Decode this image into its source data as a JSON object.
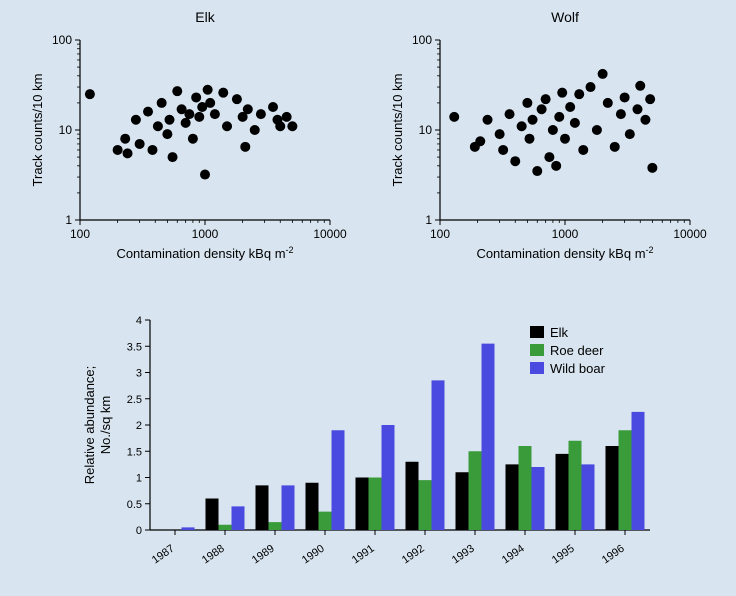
{
  "background_color": "#d8e5f0",
  "elk_scatter": {
    "type": "scatter",
    "title": "Elk",
    "title_fontsize": 14,
    "xlabel": "Contamination density kBq m",
    "ylabel": "Track counts/10 km",
    "label_fontsize": 13,
    "xscale": "log",
    "yscale": "log",
    "xlim": [
      100,
      10000
    ],
    "ylim": [
      1,
      100
    ],
    "xticks": [
      100,
      1000,
      10000
    ],
    "yticks": [
      1,
      10,
      100
    ],
    "marker_color": "#000000",
    "marker_radius": 5,
    "axis_color": "#000000",
    "tick_color": "#000000",
    "points": [
      [
        120,
        25
      ],
      [
        200,
        6
      ],
      [
        230,
        8
      ],
      [
        240,
        5.5
      ],
      [
        280,
        13
      ],
      [
        300,
        7
      ],
      [
        350,
        16
      ],
      [
        380,
        6
      ],
      [
        420,
        11
      ],
      [
        450,
        20
      ],
      [
        500,
        9
      ],
      [
        520,
        13
      ],
      [
        550,
        5
      ],
      [
        600,
        27
      ],
      [
        650,
        17
      ],
      [
        700,
        12
      ],
      [
        750,
        15
      ],
      [
        800,
        8
      ],
      [
        850,
        23
      ],
      [
        900,
        14
      ],
      [
        950,
        18
      ],
      [
        1000,
        3.2
      ],
      [
        1050,
        28
      ],
      [
        1100,
        20
      ],
      [
        1200,
        15
      ],
      [
        1400,
        26
      ],
      [
        1500,
        11
      ],
      [
        1800,
        22
      ],
      [
        2000,
        14
      ],
      [
        2100,
        6.5
      ],
      [
        2200,
        17
      ],
      [
        2500,
        10
      ],
      [
        2800,
        15
      ],
      [
        3500,
        18
      ],
      [
        3800,
        13
      ],
      [
        4000,
        11
      ],
      [
        4500,
        14
      ],
      [
        5000,
        11
      ]
    ]
  },
  "wolf_scatter": {
    "type": "scatter",
    "title": "Wolf",
    "title_fontsize": 14,
    "xlabel": "Contamination density kBq m",
    "ylabel": "Track counts/10 km",
    "label_fontsize": 13,
    "xscale": "log",
    "yscale": "log",
    "xlim": [
      100,
      10000
    ],
    "ylim": [
      1,
      100
    ],
    "xticks": [
      100,
      1000,
      10000
    ],
    "yticks": [
      1,
      10,
      100
    ],
    "marker_color": "#000000",
    "marker_radius": 5,
    "axis_color": "#000000",
    "tick_color": "#000000",
    "points": [
      [
        130,
        14
      ],
      [
        190,
        6.5
      ],
      [
        210,
        7.5
      ],
      [
        240,
        13
      ],
      [
        300,
        9
      ],
      [
        320,
        6
      ],
      [
        360,
        15
      ],
      [
        400,
        4.5
      ],
      [
        450,
        11
      ],
      [
        500,
        20
      ],
      [
        520,
        8
      ],
      [
        550,
        13
      ],
      [
        600,
        3.5
      ],
      [
        650,
        17
      ],
      [
        700,
        22
      ],
      [
        750,
        5
      ],
      [
        800,
        10
      ],
      [
        850,
        4
      ],
      [
        900,
        14
      ],
      [
        950,
        26
      ],
      [
        1000,
        8
      ],
      [
        1100,
        18
      ],
      [
        1200,
        12
      ],
      [
        1300,
        25
      ],
      [
        1400,
        6
      ],
      [
        1600,
        30
      ],
      [
        1800,
        10
      ],
      [
        2000,
        42
      ],
      [
        2200,
        20
      ],
      [
        2500,
        6.5
      ],
      [
        2800,
        15
      ],
      [
        3000,
        23
      ],
      [
        3300,
        9
      ],
      [
        3800,
        17
      ],
      [
        4000,
        31
      ],
      [
        4400,
        13
      ],
      [
        4800,
        22
      ],
      [
        5000,
        3.8
      ]
    ]
  },
  "bar_chart": {
    "type": "bar",
    "ylabel_line1": "Relative abundance;",
    "ylabel_line2": "No./sq km",
    "label_fontsize": 13,
    "categories": [
      "1987",
      "1988",
      "1989",
      "1990",
      "1991",
      "1992",
      "1993",
      "1994",
      "1995",
      "1996"
    ],
    "ylim": [
      0,
      4
    ],
    "ytick_step": 0.5,
    "yticks": [
      0,
      0.5,
      1,
      1.5,
      2,
      2.5,
      3,
      3.5,
      4
    ],
    "bar_width": 0.26,
    "axis_color": "#000000",
    "tick_fontsize": 11,
    "category_rotation": -35,
    "series": [
      {
        "name": "Elk",
        "color": "#000000",
        "values": [
          0,
          0.6,
          0.85,
          0.9,
          1,
          1.3,
          1.1,
          1.25,
          1.45,
          1.6
        ]
      },
      {
        "name": "Roe deer",
        "color": "#3a9b3a",
        "values": [
          0,
          0.1,
          0.15,
          0.35,
          1,
          0.95,
          1.5,
          1.6,
          1.7,
          1.9
        ]
      },
      {
        "name": "Wild boar",
        "color": "#4a4ae0",
        "values": [
          0.05,
          0.45,
          0.85,
          1.9,
          2,
          2.85,
          3.55,
          1.2,
          1.25,
          2.25
        ]
      }
    ],
    "legend_labels": [
      "Elk",
      "Roe deer",
      "Wild boar"
    ],
    "legend_colors": [
      "#000000",
      "#3a9b3a",
      "#4a4ae0"
    ],
    "legend_fontsize": 13
  }
}
